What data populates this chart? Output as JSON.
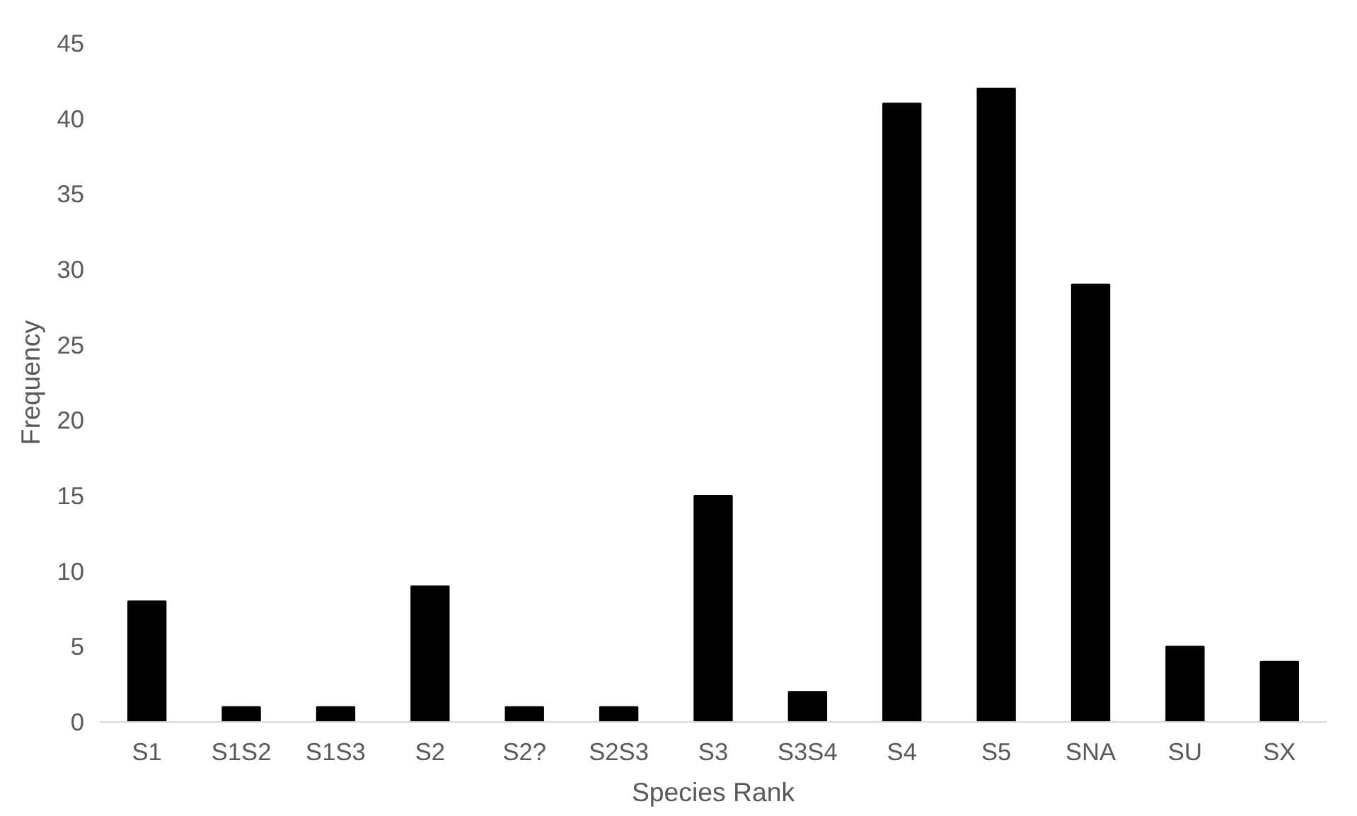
{
  "chart_data": {
    "type": "bar",
    "xlabel": "Species Rank",
    "ylabel": "Frequency",
    "categories": [
      "S1",
      "S1S2",
      "S1S3",
      "S2",
      "S2?",
      "S2S3",
      "S3",
      "S3S4",
      "S4",
      "S5",
      "SNA",
      "SU",
      "SX"
    ],
    "values": [
      8,
      1,
      1,
      9,
      1,
      1,
      15,
      2,
      41,
      42,
      29,
      5,
      4
    ],
    "color": "#000000",
    "ylim": [
      0,
      45
    ],
    "yticks": [
      0,
      5,
      10,
      15,
      20,
      25,
      30,
      35,
      40,
      45
    ],
    "grid": false
  }
}
